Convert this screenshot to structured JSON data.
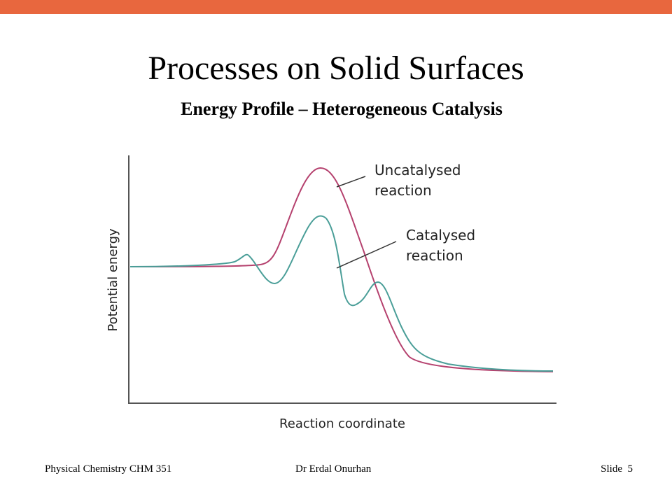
{
  "slide": {
    "title": "Processes on Solid Surfaces",
    "subtitle": "Energy Profile – Heterogeneous Catalysis",
    "accent_color": "#E8673E"
  },
  "diagram": {
    "y_axis_label": "Potential energy",
    "x_axis_label": "Reaction coordinate",
    "uncatalysed_label_line1": "Uncatalysed",
    "uncatalysed_label_line2": "reaction",
    "catalysed_label_line1": "Catalysed",
    "catalysed_label_line2": "reaction",
    "uncatalysed_color": "#B5416E",
    "catalysed_color": "#4A9E98"
  },
  "footer": {
    "course": "Physical Chemistry CHM 351",
    "author": "Dr Erdal Onurhan",
    "slide_label": "Slide",
    "slide_number": "5"
  }
}
